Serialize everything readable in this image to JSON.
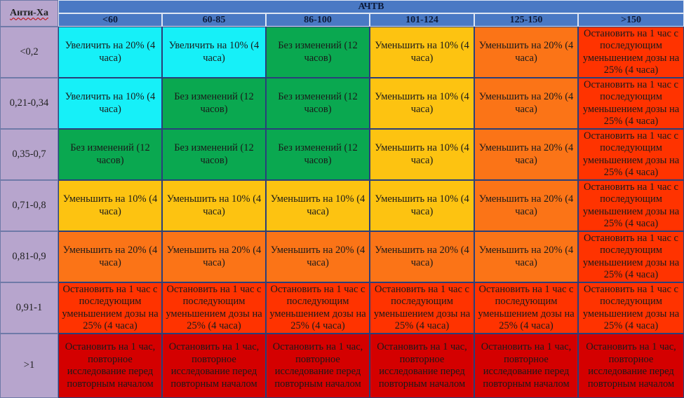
{
  "corner_label": "Анти-Ха",
  "group_header": "АЧТВ",
  "columns": [
    "<60",
    "60-85",
    "86-100",
    "101-124",
    "125-150",
    ">150"
  ],
  "colors": {
    "cyan": "#16f0f8",
    "green": "#0aa850",
    "yellow": "#fdc311",
    "orange": "#fb7417",
    "red": "#ff3300",
    "dark_red": "#d40000",
    "header_blue": "#4a79c4",
    "row_label_purple": "#b7a5cd"
  },
  "rows": [
    {
      "label": "<0,2",
      "cells": [
        {
          "text": "Увеличить на 20% (4 часа)",
          "color": "cyan"
        },
        {
          "text": "Увеличить на 10% (4 часа)",
          "color": "cyan"
        },
        {
          "text": "Без изменений (12 часов)",
          "color": "green"
        },
        {
          "text": "Уменьшить на 10% (4 часа)",
          "color": "yellow"
        },
        {
          "text": "Уменьшить на 20% (4 часа)",
          "color": "orange"
        },
        {
          "text": "Остановить на 1 час с последующим уменьшением дозы на 25% (4 часа)",
          "color": "red"
        }
      ]
    },
    {
      "label": "0,21-0,34",
      "cells": [
        {
          "text": "Увеличить на 10% (4 часа)",
          "color": "cyan"
        },
        {
          "text": "Без изменений (12 часов)",
          "color": "green"
        },
        {
          "text": "Без изменений (12 часов)",
          "color": "green"
        },
        {
          "text": "Уменьшить на 10% (4 часа)",
          "color": "yellow"
        },
        {
          "text": "Уменьшить на 20% (4 часа)",
          "color": "orange"
        },
        {
          "text": "Остановить на 1 час с последующим уменьшением дозы на 25% (4 часа)",
          "color": "red"
        }
      ]
    },
    {
      "label": "0,35-0,7",
      "cells": [
        {
          "text": "Без изменений (12 часов)",
          "color": "green"
        },
        {
          "text": "Без изменений (12 часов)",
          "color": "green"
        },
        {
          "text": "Без изменений (12 часов)",
          "color": "green"
        },
        {
          "text": "Уменьшить на 10% (4 часа)",
          "color": "yellow"
        },
        {
          "text": "Уменьшить на 20% (4 часа)",
          "color": "orange"
        },
        {
          "text": "Остановить на 1 час с последующим уменьшением дозы на 25% (4 часа)",
          "color": "red"
        }
      ]
    },
    {
      "label": "0,71-0,8",
      "cells": [
        {
          "text": "Уменьшить на 10% (4 часа)",
          "color": "yellow"
        },
        {
          "text": "Уменьшить на 10% (4 часа)",
          "color": "yellow"
        },
        {
          "text": "Уменьшить на 10% (4 часа)",
          "color": "yellow"
        },
        {
          "text": "Уменьшить на 10% (4 часа)",
          "color": "yellow"
        },
        {
          "text": "Уменьшить на 20% (4 часа)",
          "color": "orange"
        },
        {
          "text": "Остановить на 1 час с последующим уменьшением дозы на 25% (4 часа)",
          "color": "red"
        }
      ]
    },
    {
      "label": "0,81-0,9",
      "cells": [
        {
          "text": "Уменьшить на 20% (4 часа)",
          "color": "orange"
        },
        {
          "text": "Уменьшить на 20% (4 часа)",
          "color": "orange"
        },
        {
          "text": "Уменьшить на 20% (4 часа)",
          "color": "orange"
        },
        {
          "text": "Уменьшить на 20% (4 часа)",
          "color": "orange"
        },
        {
          "text": "Уменьшить на 20% (4 часа)",
          "color": "orange"
        },
        {
          "text": "Остановить на 1 час с последующим уменьшением дозы на 25% (4 часа)",
          "color": "red"
        }
      ]
    },
    {
      "label": "0,91-1",
      "cells": [
        {
          "text": "Остановить на 1 час с последующим уменьшением дозы на 25% (4 часа)",
          "color": "red"
        },
        {
          "text": "Остановить на 1 час с последующим уменьшением дозы на 25% (4 часа)",
          "color": "red"
        },
        {
          "text": "Остановить на 1 час с последующим уменьшением дозы на 25% (4 часа)",
          "color": "red"
        },
        {
          "text": "Остановить на 1 час с последующим уменьшением дозы на 25% (4 часа)",
          "color": "red"
        },
        {
          "text": "Остановить на 1 час с последующим уменьшением дозы на 25% (4 часа)",
          "color": "red"
        },
        {
          "text": "Остановить на 1 час с последующим уменьшением дозы на 25% (4 часа)",
          "color": "red"
        }
      ]
    },
    {
      "label": ">1",
      "cells": [
        {
          "text": "Остановить на 1 час, повторное исследование перед повторным началом",
          "color": "dark_red"
        },
        {
          "text": "Остановить на 1 час, повторное исследование перед повторным началом",
          "color": "dark_red"
        },
        {
          "text": "Остановить на 1 час, повторное исследование перед повторным началом",
          "color": "dark_red"
        },
        {
          "text": "Остановить на 1 час, повторное исследование перед повторным началом",
          "color": "dark_red"
        },
        {
          "text": "Остановить на 1 час, повторное исследование перед повторным началом",
          "color": "dark_red"
        },
        {
          "text": "Остановить на 1 час, повторное исследование перед повторным началом",
          "color": "dark_red"
        }
      ]
    }
  ]
}
